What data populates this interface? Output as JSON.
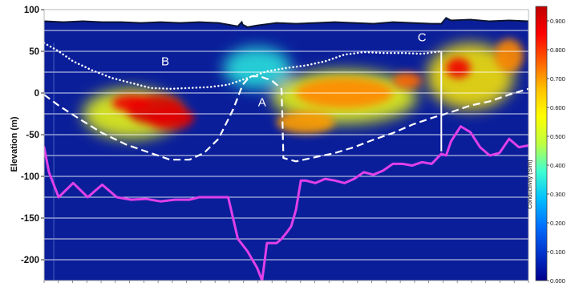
{
  "chart_data": {
    "type": "heatmap",
    "title": "",
    "ylabel": "Elevation (m)",
    "xlabel": "",
    "ylim": [
      -225,
      100
    ],
    "yticks": [
      100,
      50,
      0,
      -50,
      -100,
      -150,
      -200
    ],
    "grid": true,
    "grid_levels": [
      75,
      50,
      25,
      0,
      -25,
      -50,
      -75,
      -100,
      -125,
      -150,
      -175,
      -200
    ],
    "profile_x_range": [
      0,
      100
    ],
    "colorbar": {
      "label": "Conductivity (S/m)",
      "range": [
        0.0,
        0.95
      ],
      "tick_labels": [
        "0.900",
        "0.800",
        "0.700",
        "0.600",
        "0.500",
        "0.400",
        "0.300",
        "0.200",
        "0.100",
        "0.000"
      ],
      "colors": [
        "#00008b",
        "#0033cc",
        "#0070ff",
        "#00c0ff",
        "#40ffd0",
        "#c0ff40",
        "#ffff00",
        "#ffc000",
        "#ff6000",
        "#ff0000",
        "#c00000"
      ]
    },
    "surface_line": {
      "color": "#0b1530",
      "x": [
        0,
        4,
        8,
        12,
        16,
        20,
        24,
        28,
        32,
        36,
        40,
        40.8,
        41,
        42,
        44,
        48,
        52,
        56,
        60,
        64,
        68,
        72,
        76,
        80,
        82,
        83,
        84,
        88,
        92,
        96,
        100
      ],
      "y": [
        86,
        85,
        86,
        85,
        85,
        84,
        85,
        84,
        85,
        84,
        80,
        85,
        82,
        79,
        81,
        84,
        83,
        84,
        85,
        84,
        83,
        85,
        84,
        83,
        83,
        90,
        87,
        88,
        86,
        87,
        86
      ]
    },
    "background_shading": [
      {
        "x_center": 18,
        "y_center": -25,
        "spread_x": 10,
        "spread_y": 30,
        "value": 0.55
      },
      {
        "x_center": 62,
        "y_center": -5,
        "spread_x": 15,
        "spread_y": 32,
        "value": 0.55
      },
      {
        "x_center": 88,
        "y_center": 20,
        "spread_x": 9,
        "spread_y": 40,
        "value": 0.6
      },
      {
        "x_center": 44,
        "y_center": 30,
        "spread_x": 7,
        "spread_y": 25,
        "value": 0.35
      }
    ],
    "conductivity_anomalies": [
      {
        "x_center": 23,
        "y_center": -20,
        "spread_x": 6,
        "spread_y": 18,
        "value": 0.92
      },
      {
        "x_center": 26,
        "y_center": -30,
        "spread_x": 5,
        "spread_y": 14,
        "value": 0.9
      },
      {
        "x_center": 18,
        "y_center": -12,
        "spread_x": 4,
        "spread_y": 10,
        "value": 0.88
      },
      {
        "x_center": 62,
        "y_center": 0,
        "spread_x": 10,
        "spread_y": 18,
        "value": 0.72
      },
      {
        "x_center": 75,
        "y_center": 15,
        "spread_x": 3,
        "spread_y": 10,
        "value": 0.75
      },
      {
        "x_center": 85.5,
        "y_center": 30,
        "spread_x": 2.5,
        "spread_y": 12,
        "value": 0.88
      },
      {
        "x_center": 96,
        "y_center": 45,
        "spread_x": 3,
        "spread_y": 20,
        "value": 0.72
      },
      {
        "x_center": 54,
        "y_center": -35,
        "spread_x": 6,
        "spread_y": 14,
        "value": 0.7
      }
    ],
    "series": [
      {
        "name": "",
        "style": "solid",
        "color": "#e040e8",
        "x": [
          0,
          1,
          3,
          6,
          9,
          12,
          15,
          18,
          21,
          24,
          27,
          30,
          32,
          34,
          36,
          38,
          40,
          42,
          44,
          45,
          46,
          47,
          48,
          49,
          50,
          51,
          52,
          53,
          54,
          56,
          58,
          60,
          62,
          64,
          66,
          68,
          70,
          72,
          74,
          76,
          78,
          80,
          82,
          83,
          84,
          86,
          88,
          90,
          92,
          94,
          96,
          98,
          100
        ],
        "y": [
          -65,
          -95,
          -125,
          -108,
          -125,
          -110,
          -125,
          -128,
          -127,
          -130,
          -128,
          -128,
          -125,
          -125,
          -125,
          -125,
          -175,
          -190,
          -210,
          -225,
          -180,
          -180,
          -180,
          -175,
          -168,
          -160,
          -140,
          -105,
          -105,
          -108,
          -103,
          -105,
          -108,
          -103,
          -95,
          -98,
          -93,
          -85,
          -85,
          -87,
          -83,
          -85,
          -73,
          -75,
          -58,
          -40,
          -47,
          -65,
          -75,
          -72,
          -55,
          -65,
          -63
        ]
      },
      {
        "name": "",
        "style": "dashed",
        "color": "#ffffff",
        "x": [
          0,
          3,
          7,
          12,
          17,
          22,
          26,
          30,
          33,
          36,
          39,
          41,
          42.5,
          44.5,
          47,
          49,
          49.2,
          49.4,
          52,
          56,
          60,
          64,
          68,
          72,
          76,
          80,
          84,
          88,
          92,
          96,
          100
        ],
        "y": [
          -2,
          -15,
          -30,
          -48,
          -62,
          -72,
          -80,
          -80,
          -72,
          -55,
          -20,
          10,
          20,
          20,
          15,
          5,
          -30,
          -78,
          -82,
          -77,
          -72,
          -65,
          -56,
          -48,
          -38,
          -30,
          -23,
          -15,
          -10,
          -2,
          5
        ]
      },
      {
        "name": "",
        "style": "dotted",
        "color": "#ffffff",
        "x": [
          0,
          3,
          6,
          10,
          14,
          18,
          22,
          26,
          30,
          34,
          38,
          42,
          46,
          50,
          54,
          58,
          62,
          66,
          70,
          74,
          78,
          82
        ],
        "y": [
          60,
          50,
          38,
          27,
          18,
          12,
          6,
          5,
          6,
          7,
          10,
          18,
          26,
          30,
          33,
          38,
          46,
          49,
          48,
          48,
          47,
          50
        ]
      }
    ],
    "annotations": [
      {
        "text": "A",
        "x": 45,
        "y": -12,
        "color": "#ffffff"
      },
      {
        "text": "B",
        "x": 25,
        "y": 37,
        "color": "#ffffff"
      },
      {
        "text": "C",
        "x": 78,
        "y": 66,
        "color": "#ffffff"
      }
    ],
    "vertical_markers": [
      {
        "x": 82,
        "y_top": 50,
        "y_bottom": -70,
        "color": "#ffffff"
      },
      {
        "x": 2,
        "y_top": 60,
        "y_bottom": -225,
        "color": "#6f8fd8"
      }
    ]
  }
}
